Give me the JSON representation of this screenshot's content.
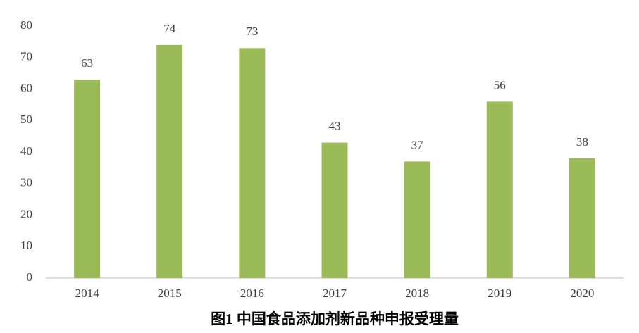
{
  "chart_data": {
    "type": "bar",
    "title": "图1  中国食品添加剂新品种申报受理量",
    "categories": [
      "2014",
      "2015",
      "2016",
      "2017",
      "2018",
      "2019",
      "2020"
    ],
    "values": [
      63,
      74,
      73,
      43,
      37,
      56,
      38
    ],
    "color": "#9bbb59",
    "ylim": [
      0,
      80
    ],
    "yticks": [
      0,
      10,
      20,
      30,
      40,
      50,
      60,
      70,
      80
    ],
    "grid": false
  }
}
